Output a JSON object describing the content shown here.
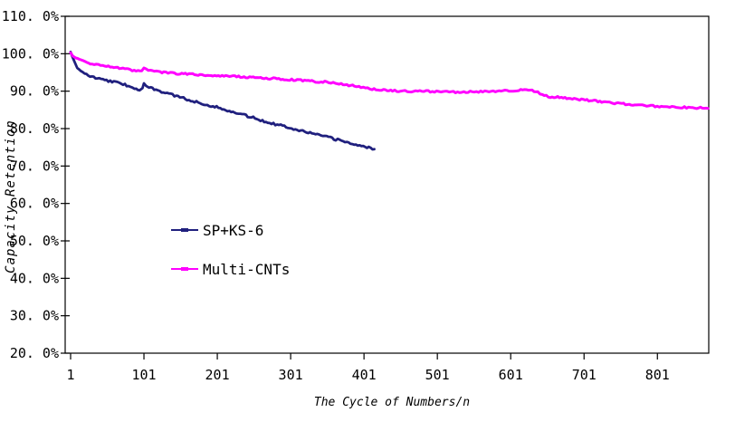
{
  "chart_data": {
    "type": "line",
    "title": "",
    "xlabel": "The Cycle of Numbers/n",
    "ylabel": "Capacity Retention",
    "xlim": [
      1,
      871
    ],
    "ylim": [
      20,
      110
    ],
    "y_unit": "percent",
    "grid": false,
    "legend_position": "inside-middle-left",
    "plot_border_color": "#000000",
    "background_color": "#ffffff",
    "x_tick_values": [
      1,
      101,
      201,
      301,
      401,
      501,
      601,
      701,
      801
    ],
    "x_tick_labels": [
      "1",
      "101",
      "201",
      "301",
      "401",
      "501",
      "601",
      "701",
      "801"
    ],
    "y_tick_values": [
      110,
      100,
      90,
      80,
      70,
      60,
      50,
      40,
      30,
      20
    ],
    "y_tick_labels": [
      "110. 0%",
      "100. 0%",
      "90. 0%",
      "80. 0%",
      "70. 0%",
      "60. 0%",
      "50. 0%",
      "40. 0%",
      "30. 0%",
      "20. 0%"
    ],
    "series": [
      {
        "name": "SP+KS-6",
        "color": "#20207e",
        "marker": "+",
        "points": [
          [
            1,
            100.5
          ],
          [
            3,
            99.1
          ],
          [
            6,
            97.7
          ],
          [
            10,
            96.5
          ],
          [
            15,
            95.4
          ],
          [
            20,
            94.7
          ],
          [
            25,
            94.2
          ],
          [
            30,
            93.8
          ],
          [
            40,
            93.3
          ],
          [
            50,
            92.9
          ],
          [
            60,
            92.5
          ],
          [
            70,
            92.0
          ],
          [
            80,
            91.4
          ],
          [
            88,
            90.9
          ],
          [
            95,
            90.4
          ],
          [
            99,
            90.5
          ],
          [
            101,
            91.9
          ],
          [
            104,
            91.3
          ],
          [
            108,
            90.9
          ],
          [
            115,
            90.5
          ],
          [
            125,
            89.9
          ],
          [
            135,
            89.3
          ],
          [
            145,
            88.7
          ],
          [
            155,
            88.1
          ],
          [
            165,
            87.5
          ],
          [
            175,
            87.0
          ],
          [
            185,
            86.5
          ],
          [
            195,
            86.0
          ],
          [
            205,
            85.4
          ],
          [
            215,
            84.9
          ],
          [
            225,
            84.3
          ],
          [
            235,
            83.7
          ],
          [
            245,
            83.2
          ],
          [
            255,
            82.6
          ],
          [
            265,
            82.0
          ],
          [
            275,
            81.4
          ],
          [
            285,
            81.0
          ],
          [
            295,
            80.5
          ],
          [
            305,
            80.0
          ],
          [
            315,
            79.5
          ],
          [
            325,
            79.0
          ],
          [
            335,
            78.5
          ],
          [
            345,
            78.0
          ],
          [
            355,
            77.5
          ],
          [
            365,
            77.0
          ],
          [
            375,
            76.5
          ],
          [
            385,
            76.0
          ],
          [
            395,
            75.5
          ],
          [
            405,
            75.0
          ],
          [
            415,
            74.5
          ]
        ]
      },
      {
        "name": "Multi-CNTs",
        "color": "#ff00ff",
        "marker": "+",
        "points": [
          [
            1,
            100.3
          ],
          [
            4,
            99.4
          ],
          [
            8,
            98.8
          ],
          [
            13,
            98.3
          ],
          [
            20,
            97.8
          ],
          [
            28,
            97.4
          ],
          [
            36,
            97.1
          ],
          [
            45,
            96.8
          ],
          [
            55,
            96.5
          ],
          [
            65,
            96.2
          ],
          [
            75,
            95.9
          ],
          [
            85,
            95.6
          ],
          [
            93,
            95.4
          ],
          [
            98,
            95.3
          ],
          [
            101,
            96.3
          ],
          [
            104,
            95.7
          ],
          [
            110,
            95.4
          ],
          [
            118,
            95.2
          ],
          [
            128,
            95.0
          ],
          [
            140,
            94.8
          ],
          [
            155,
            94.6
          ],
          [
            170,
            94.5
          ],
          [
            185,
            94.3
          ],
          [
            200,
            94.2
          ],
          [
            215,
            94.0
          ],
          [
            230,
            93.9
          ],
          [
            245,
            93.7
          ],
          [
            260,
            93.5
          ],
          [
            275,
            93.4
          ],
          [
            290,
            93.2
          ],
          [
            305,
            93.0
          ],
          [
            320,
            92.8
          ],
          [
            335,
            92.6
          ],
          [
            350,
            92.4
          ],
          [
            362,
            92.1
          ],
          [
            375,
            91.8
          ],
          [
            388,
            91.4
          ],
          [
            400,
            91.0
          ],
          [
            412,
            90.6
          ],
          [
            425,
            90.3
          ],
          [
            440,
            90.1
          ],
          [
            460,
            90.0
          ],
          [
            480,
            90.0
          ],
          [
            500,
            89.9
          ],
          [
            520,
            89.8
          ],
          [
            540,
            89.8
          ],
          [
            560,
            89.8
          ],
          [
            580,
            89.9
          ],
          [
            596,
            90.1
          ],
          [
            612,
            90.3
          ],
          [
            625,
            90.2
          ],
          [
            638,
            90.0
          ],
          [
            644,
            88.9
          ],
          [
            655,
            88.5
          ],
          [
            670,
            88.3
          ],
          [
            685,
            88.0
          ],
          [
            700,
            87.7
          ],
          [
            715,
            87.4
          ],
          [
            730,
            87.1
          ],
          [
            745,
            86.8
          ],
          [
            760,
            86.5
          ],
          [
            775,
            86.2
          ],
          [
            795,
            86.0
          ],
          [
            815,
            85.8
          ],
          [
            835,
            85.7
          ],
          [
            852,
            85.6
          ],
          [
            870,
            85.4
          ]
        ]
      }
    ]
  }
}
